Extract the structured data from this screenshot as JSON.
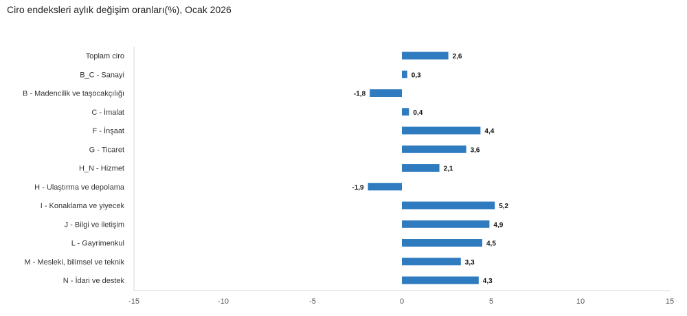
{
  "chart_data": {
    "type": "bar",
    "orientation": "horizontal",
    "title": "Ciro endeksleri aylık değişim oranları(%), Ocak 2026",
    "categories": [
      "Toplam ciro",
      "B_C - Sanayi",
      "B - Madencilik ve taşocakçılığı",
      "C - İmalat",
      "F - İnşaat",
      "G - Ticaret",
      "H_N - Hizmet",
      "H - Ulaştırma ve depolama",
      "I - Konaklama ve yiyecek",
      "J - Bilgi ve iletişim",
      "L - Gayrimenkul",
      "M - Mesleki, bilimsel ve teknik",
      "N - İdari ve destek"
    ],
    "values": [
      2.6,
      0.3,
      -1.8,
      0.4,
      4.4,
      3.6,
      2.1,
      -1.9,
      5.2,
      4.9,
      4.5,
      3.3,
      4.3
    ],
    "value_labels": [
      "2,6",
      "0,3",
      "-1,8",
      "0,4",
      "4,4",
      "3,6",
      "2,1",
      "-1,9",
      "5,2",
      "4,9",
      "4,5",
      "3,3",
      "4,3"
    ],
    "xlim": [
      -15,
      15
    ],
    "xticks": [
      -15,
      -10,
      -5,
      0,
      5,
      10,
      15
    ],
    "xlabel": "",
    "ylabel": "",
    "grid": false,
    "legend": "none",
    "bar_color": "#2e7bbf"
  }
}
